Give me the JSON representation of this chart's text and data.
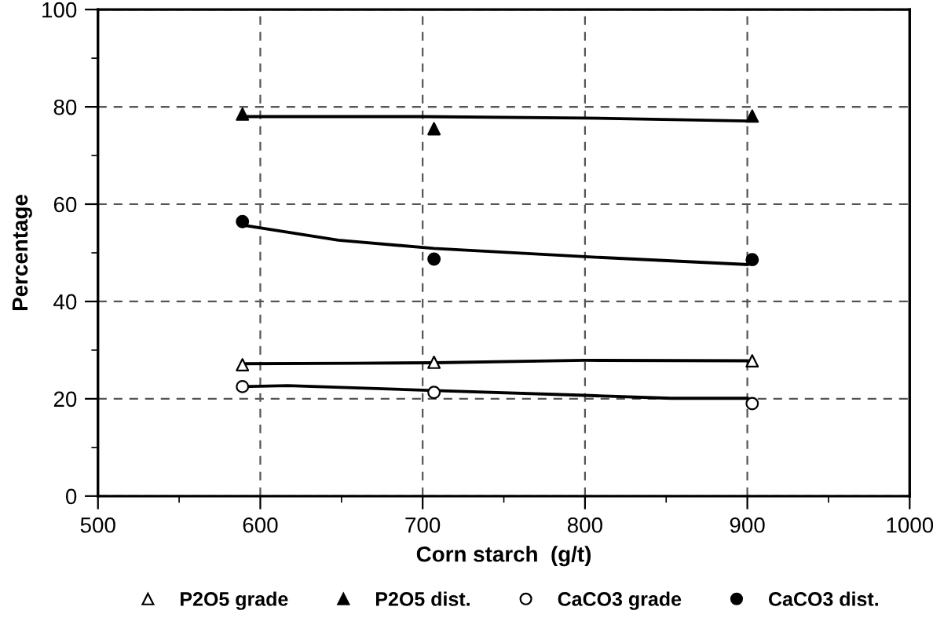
{
  "chart_data": {
    "type": "scatter",
    "xlabel": "Corn starch  (g/t)",
    "ylabel": "Percentage",
    "xlim": [
      500,
      1000
    ],
    "xticks": [
      500,
      600,
      700,
      800,
      900,
      1000
    ],
    "ylim": [
      0,
      100
    ],
    "yticks": [
      0,
      20,
      40,
      60,
      80,
      100
    ],
    "grid": true,
    "legend": "bottom",
    "series": [
      {
        "name": "P2O5 grade",
        "marker": "triangle",
        "color": "#ffffff",
        "x": [
          589,
          707,
          903
        ],
        "values": [
          27.0,
          27.5,
          27.8
        ]
      },
      {
        "name": "P2O5 dist.",
        "marker": "triangle",
        "color": "#000000",
        "x": [
          589,
          707,
          903
        ],
        "values": [
          78.5,
          75.5,
          78.1
        ]
      },
      {
        "name": "CaCO3 grade",
        "marker": "circle",
        "color": "#ffffff",
        "x": [
          589,
          707,
          903
        ],
        "values": [
          22.5,
          21.3,
          19.0
        ]
      },
      {
        "name": "CaCO3 dist.",
        "marker": "circle",
        "color": "#000000",
        "x": [
          589,
          707,
          903
        ],
        "values": [
          56.4,
          48.7,
          48.6
        ]
      },
      {
        "type": "line",
        "color": "#000000",
        "x": [
          589,
          700,
          800,
          900
        ],
        "values": [
          78.0,
          78.0,
          77.7,
          77.1
        ]
      },
      {
        "type": "line",
        "color": "#000000",
        "x": [
          589,
          648,
          707,
          800,
          900
        ],
        "values": [
          55.7,
          52.6,
          50.9,
          49.2,
          47.6
        ]
      },
      {
        "type": "line",
        "color": "#000000",
        "x": [
          589,
          659,
          707,
          800,
          900
        ],
        "values": [
          27.2,
          27.3,
          27.4,
          27.9,
          27.8
        ]
      },
      {
        "type": "line",
        "color": "#000000",
        "x": [
          589,
          617,
          707,
          800,
          853,
          900
        ],
        "values": [
          22.5,
          22.7,
          21.7,
          20.7,
          20.1,
          20.1
        ]
      }
    ]
  }
}
